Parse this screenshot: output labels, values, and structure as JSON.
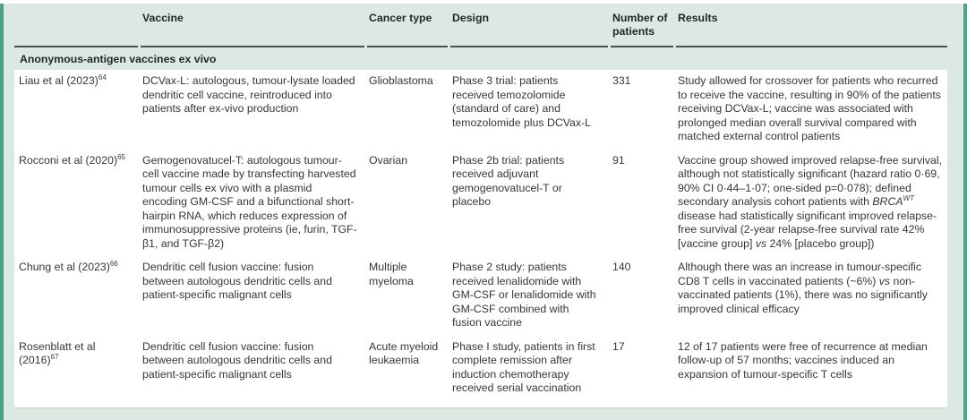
{
  "colors": {
    "accent_green": "#4fa184",
    "band_mint": "#dce9e2",
    "rule_dark": "#4f4f4f"
  },
  "table": {
    "header": {
      "study": "",
      "vaccine": "Vaccine",
      "cancer_type": "Cancer type",
      "design": "Design",
      "patients": "Number of patients",
      "results": "Results"
    },
    "section_title": "Anonymous-antigen vaccines ex vivo",
    "rows": [
      {
        "study": [
          {
            "t": "Liau et al (2023)"
          },
          {
            "t": "64",
            "s": "sup"
          }
        ],
        "vaccine": [
          {
            "t": "DCVax-L: autologous, tumour-lysate loaded dendritic cell vaccine, reintroduced into patients after ex-vivo production"
          }
        ],
        "cancer": [
          {
            "t": "Glioblastoma"
          }
        ],
        "design": [
          {
            "t": "Phase 3 trial: patients received temozolomide (standard of care) and temozolomide plus DCVax-L"
          }
        ],
        "patients": [
          {
            "t": "331"
          }
        ],
        "results": [
          {
            "t": "Study allowed for crossover for patients who recurred to receive the vaccine, resulting in 90% of the patients receiving DCVax-L; vaccine was associated with prolonged median overall survival compared with matched external control patients"
          }
        ]
      },
      {
        "study": [
          {
            "t": "Rocconi et al (2020)"
          },
          {
            "t": "65",
            "s": "sup"
          }
        ],
        "vaccine": [
          {
            "t": "Gemogenovatucel-T: autologous tumour-cell vaccine made by transfecting harvested tumour cells ex vivo with a plasmid encoding GM-CSF and a bifunctional short-hairpin RNA, which reduces expression of immunosuppressive proteins (ie, furin, TGF-β1, and TGF-β2)"
          }
        ],
        "cancer": [
          {
            "t": "Ovarian"
          }
        ],
        "design": [
          {
            "t": "Phase 2b trial: patients received adjuvant gemogenovatucel-T or placebo"
          }
        ],
        "patients": [
          {
            "t": "91"
          }
        ],
        "results": [
          {
            "t": "Vaccine group showed improved relapse-free survival, although not statistically significant (hazard ratio 0·69, 90% CI 0·44–1·07; one-sided p=0·078); defined secondary analysis cohort patients with "
          },
          {
            "t": "BRCA",
            "s": "i"
          },
          {
            "t": "WT",
            "s": "isup"
          },
          {
            "t": " disease had statistically significant improved relapse-free survival (2-year relapse-free survival rate 42% [vaccine group] "
          },
          {
            "t": "vs",
            "s": "i"
          },
          {
            "t": " 24% [placebo group])"
          }
        ]
      },
      {
        "study": [
          {
            "t": "Chung et al (2023)"
          },
          {
            "t": "66",
            "s": "sup"
          }
        ],
        "vaccine": [
          {
            "t": "Dendritic cell fusion vaccine: fusion between autologous dendritic cells and patient-specific malignant cells"
          }
        ],
        "cancer": [
          {
            "t": "Multiple myeloma"
          }
        ],
        "design": [
          {
            "t": "Phase 2 study: patients received lenalidomide with GM-CSF or lenalidomide with GM-CSF combined with fusion vaccine"
          }
        ],
        "patients": [
          {
            "t": "140"
          }
        ],
        "results": [
          {
            "t": "Although there was an increase in tumour-specific CD8 T cells in vaccinated patients (~6%) "
          },
          {
            "t": "vs",
            "s": "i"
          },
          {
            "t": " non-vaccinated patients (1%), there was no significantly improved clinical efficacy"
          }
        ]
      },
      {
        "study": [
          {
            "t": "Rosenblatt et al (2016)"
          },
          {
            "t": "67",
            "s": "sup"
          }
        ],
        "vaccine": [
          {
            "t": "Dendritic cell fusion vaccine: fusion between autologous dendritic cells and patient-specific malignant cells"
          }
        ],
        "cancer": [
          {
            "t": "Acute myeloid leukaemia"
          }
        ],
        "design": [
          {
            "t": "Phase I study, patients in first complete remission after induction chemotherapy received serial vaccination"
          }
        ],
        "patients": [
          {
            "t": "17"
          }
        ],
        "results": [
          {
            "t": "12 of 17 patients were free of recurrence at median follow-up of 57 months; vaccines induced an expansion of tumour-specific T cells"
          }
        ]
      }
    ]
  }
}
